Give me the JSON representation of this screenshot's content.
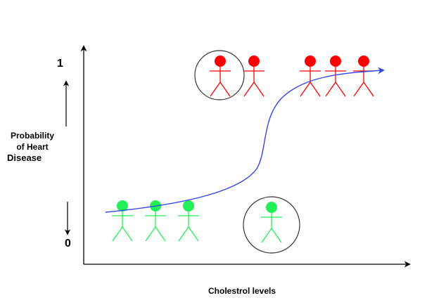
{
  "diagram": {
    "title": "",
    "x_axis_label": "Cholestrol levels",
    "y_axis_label_lines": [
      "Probability",
      "of Heart",
      "Disease"
    ],
    "y_tick_top": "1",
    "y_tick_bottom": "0",
    "curve_type": "sigmoid",
    "colors": {
      "axis": "#000000",
      "curve": "#3344ee",
      "high_risk_person": "#ff0000",
      "low_risk_person": "#22ee55",
      "highlight_circle": "#333333"
    },
    "groups": [
      {
        "name": "high-probability",
        "color_key": "high_risk_person",
        "count": 5,
        "highlighted_count": 1
      },
      {
        "name": "low-probability",
        "color_key": "low_risk_person",
        "count": 4,
        "highlighted_count": 1
      }
    ]
  }
}
